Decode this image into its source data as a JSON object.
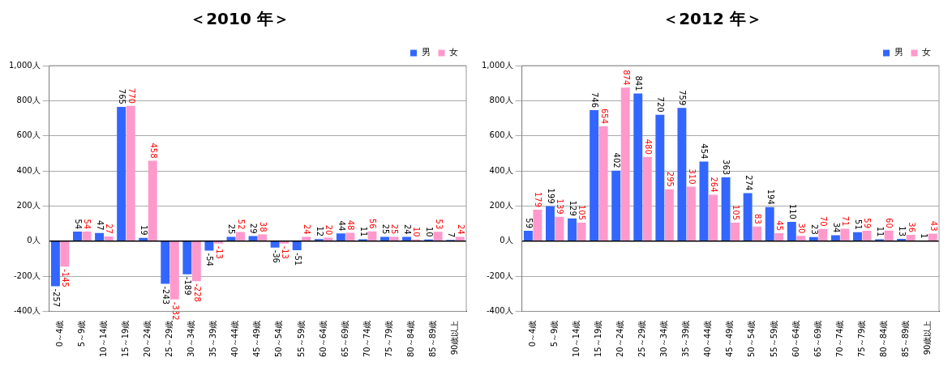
{
  "chart_data": [
    {
      "type": "bar",
      "title": "＜2010 年＞",
      "categories": [
        "0～4歳",
        "5～9歳",
        "10～14歳",
        "15～19歳",
        "20～24歳",
        "25～29歳",
        "30～34歳",
        "35～39歳",
        "40～44歳",
        "45～49歳",
        "50～54歳",
        "55～59歳",
        "60～64歳",
        "65～69歳",
        "70～74歳",
        "75～79歳",
        "80～84歳",
        "85～89歳",
        "90歳以上"
      ],
      "series": [
        {
          "name": "男",
          "color": "#3366ff",
          "values": [
            -257,
            54,
            47,
            765,
            19,
            -243,
            -189,
            -54,
            25,
            29,
            -36,
            -51,
            12,
            44,
            11,
            25,
            24,
            10,
            7
          ]
        },
        {
          "name": "女",
          "color": "#ff99cc",
          "values": [
            -145,
            54,
            27,
            770,
            458,
            -332,
            -228,
            -13,
            52,
            38,
            -13,
            24,
            20,
            48,
            56,
            25,
            10,
            53,
            24
          ]
        }
      ],
      "ylim": [
        -400,
        1000
      ],
      "yticks": [
        {
          "value": -400,
          "label": "-400人"
        },
        {
          "value": -200,
          "label": "-200人"
        },
        {
          "value": 0,
          "label": "0人"
        },
        {
          "value": 200,
          "label": "200人"
        },
        {
          "value": 400,
          "label": "400人"
        },
        {
          "value": 600,
          "label": "600人"
        },
        {
          "value": 800,
          "label": "800人"
        },
        {
          "value": 1000,
          "label": "1,000人"
        }
      ],
      "grid": "y",
      "legend": "top right",
      "data_labels": true
    },
    {
      "type": "bar",
      "title": "＜2012 年＞",
      "categories": [
        "0～4歳",
        "5～9歳",
        "10～14歳",
        "15～19歳",
        "20～24歳",
        "25～29歳",
        "30～34歳",
        "35～39歳",
        "40～44歳",
        "45～49歳",
        "50～54歳",
        "55～59歳",
        "60～64歳",
        "65～69歳",
        "70～74歳",
        "75～79歳",
        "80～84歳",
        "85～89歳",
        "90歳以上"
      ],
      "series": [
        {
          "name": "男",
          "color": "#3366ff",
          "values": [
            59,
            199,
            129,
            746,
            402,
            841,
            720,
            759,
            454,
            363,
            274,
            194,
            110,
            23,
            34,
            51,
            11,
            13,
            1
          ]
        },
        {
          "name": "女",
          "color": "#ff99cc",
          "values": [
            179,
            139,
            105,
            654,
            874,
            480,
            295,
            310,
            264,
            105,
            83,
            45,
            30,
            70,
            71,
            59,
            60,
            36,
            43
          ]
        }
      ],
      "ylim": [
        -400,
        1000
      ],
      "yticks": [
        {
          "value": -400,
          "label": "-400人"
        },
        {
          "value": -200,
          "label": "-200人"
        },
        {
          "value": 0,
          "label": "0人"
        },
        {
          "value": 200,
          "label": "200人"
        },
        {
          "value": 400,
          "label": "400人"
        },
        {
          "value": 600,
          "label": "600人"
        },
        {
          "value": 800,
          "label": "800人"
        },
        {
          "value": 1000,
          "label": "1,000人"
        }
      ],
      "grid": "y",
      "legend": "top right",
      "data_labels": true
    }
  ]
}
